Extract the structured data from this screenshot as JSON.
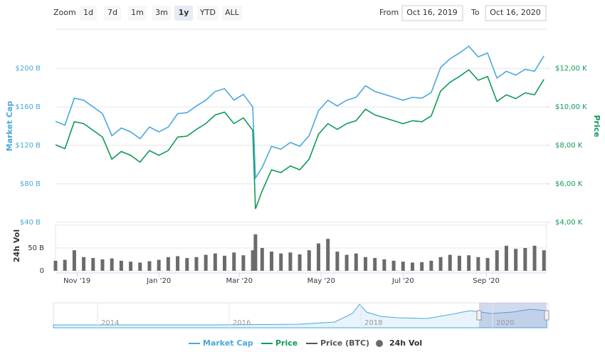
{
  "controls": {
    "zoom_label": "Zoom",
    "zoom_buttons": [
      "1d",
      "7d",
      "1m",
      "3m",
      "1y",
      "YTD",
      "ALL"
    ],
    "selected": "1y",
    "from_label": "From",
    "from_value": "Oct 16, 2019",
    "to_label": "To",
    "to_value": "Oct 16, 2020"
  },
  "navigator": {
    "labels": [
      "2014",
      "2016",
      "2018",
      "2020"
    ]
  },
  "chart_data": [
    {
      "type": "line",
      "ylabel": "Market Cap",
      "y2label": "Price",
      "xlim": [
        "2019-10-16",
        "2020-10-16"
      ],
      "x": [
        "2019-10-16",
        "2019-10-23",
        "2019-10-30",
        "2019-11-06",
        "2019-11-13",
        "2019-11-20",
        "2019-11-27",
        "2019-12-04",
        "2019-12-11",
        "2019-12-18",
        "2019-12-25",
        "2020-01-01",
        "2020-01-08",
        "2020-01-15",
        "2020-01-22",
        "2020-01-29",
        "2020-02-05",
        "2020-02-12",
        "2020-02-19",
        "2020-02-26",
        "2020-03-04",
        "2020-03-11",
        "2020-03-13",
        "2020-03-18",
        "2020-03-25",
        "2020-04-01",
        "2020-04-08",
        "2020-04-15",
        "2020-04-22",
        "2020-04-29",
        "2020-05-06",
        "2020-05-13",
        "2020-05-20",
        "2020-05-27",
        "2020-06-03",
        "2020-06-10",
        "2020-06-17",
        "2020-06-24",
        "2020-07-01",
        "2020-07-08",
        "2020-07-15",
        "2020-07-22",
        "2020-07-29",
        "2020-08-05",
        "2020-08-12",
        "2020-08-19",
        "2020-08-26",
        "2020-09-02",
        "2020-09-09",
        "2020-09-16",
        "2020-09-23",
        "2020-09-30",
        "2020-10-07",
        "2020-10-14"
      ],
      "ylim": [
        40,
        240
      ],
      "yticks": [
        {
          "value": 40,
          "label": "$40 B"
        },
        {
          "value": 80,
          "label": "$80 B"
        },
        {
          "value": 120,
          "label": "$120 B"
        },
        {
          "value": 160,
          "label": "$160 B"
        },
        {
          "value": 200,
          "label": "$200 B"
        }
      ],
      "y2lim": [
        4000,
        14000
      ],
      "y2ticks": [
        {
          "value": 4000,
          "label": "$4,00 K"
        },
        {
          "value": 6000,
          "label": "$6,00 K"
        },
        {
          "value": 8000,
          "label": "$8,00 K"
        },
        {
          "value": 10000,
          "label": "$10,00 K"
        },
        {
          "value": 12000,
          "label": "$12,00 K"
        }
      ],
      "grid": true,
      "series": [
        {
          "name": "Market Cap",
          "color": "#4aa8dc",
          "values": [
            145,
            141,
            169,
            167,
            160,
            153,
            130,
            138,
            134,
            127,
            139,
            134,
            139,
            153,
            154,
            161,
            167,
            176,
            179,
            167,
            173,
            160,
            86,
            97,
            119,
            116,
            123,
            119,
            130,
            156,
            167,
            161,
            167,
            170,
            182,
            176,
            173,
            170,
            167,
            170,
            169,
            175,
            201,
            210,
            216,
            223,
            212,
            216,
            190,
            197,
            193,
            199,
            197,
            213
          ]
        },
        {
          "name": "Price",
          "color": "#109a58",
          "axis": "y2",
          "values": [
            8030,
            7830,
            9230,
            9130,
            8780,
            8430,
            7280,
            7680,
            7480,
            7130,
            7730,
            7480,
            7730,
            8430,
            8480,
            8830,
            9130,
            9580,
            9730,
            9130,
            9430,
            8780,
            4700,
            5630,
            6730,
            6580,
            6930,
            6730,
            7280,
            8580,
            9130,
            8830,
            9130,
            9280,
            9880,
            9580,
            9430,
            9280,
            9130,
            9280,
            9230,
            9530,
            10830,
            11280,
            11580,
            11930,
            11380,
            11580,
            10280,
            10630,
            10430,
            10730,
            10630,
            11430
          ]
        },
        {
          "name": "Price (BTC)",
          "color": "#555555",
          "visible": false
        }
      ]
    },
    {
      "type": "bar",
      "ylabel": "24h Vol",
      "xlim": [
        "2019-10-16",
        "2020-10-16"
      ],
      "xticks": [
        {
          "value": "2019-11",
          "label": "Nov '19"
        },
        {
          "value": "2020-01",
          "label": "Jan '20"
        },
        {
          "value": "2020-03",
          "label": "Mar '20"
        },
        {
          "value": "2020-05",
          "label": "May '20"
        },
        {
          "value": "2020-07",
          "label": "Jul '20"
        },
        {
          "value": "2020-09",
          "label": "Sep '20"
        }
      ],
      "x": [
        "2019-10-16",
        "2019-10-23",
        "2019-10-30",
        "2019-11-06",
        "2019-11-13",
        "2019-11-20",
        "2019-11-27",
        "2019-12-04",
        "2019-12-11",
        "2019-12-18",
        "2019-12-25",
        "2020-01-01",
        "2020-01-08",
        "2020-01-15",
        "2020-01-22",
        "2020-01-29",
        "2020-02-05",
        "2020-02-12",
        "2020-02-19",
        "2020-02-26",
        "2020-03-04",
        "2020-03-11",
        "2020-03-13",
        "2020-03-18",
        "2020-03-25",
        "2020-04-01",
        "2020-04-08",
        "2020-04-15",
        "2020-04-22",
        "2020-04-29",
        "2020-05-06",
        "2020-05-13",
        "2020-05-20",
        "2020-05-27",
        "2020-06-03",
        "2020-06-10",
        "2020-06-17",
        "2020-06-24",
        "2020-07-01",
        "2020-07-08",
        "2020-07-15",
        "2020-07-22",
        "2020-07-29",
        "2020-08-05",
        "2020-08-12",
        "2020-08-19",
        "2020-08-26",
        "2020-09-02",
        "2020-09-09",
        "2020-09-16",
        "2020-09-23",
        "2020-09-30",
        "2020-10-07",
        "2020-10-14"
      ],
      "ylim": [
        0,
        100
      ],
      "yticks": [
        0,
        {
          "value": 50,
          "label": "50 B"
        }
      ],
      "series": [
        {
          "name": "24h Vol",
          "color": "#6b6b6b",
          "values": [
            22,
            24,
            45,
            30,
            28,
            25,
            27,
            22,
            20,
            18,
            21,
            24,
            30,
            32,
            28,
            30,
            35,
            38,
            33,
            40,
            34,
            45,
            80,
            50,
            42,
            38,
            40,
            36,
            45,
            60,
            70,
            42,
            35,
            38,
            30,
            28,
            25,
            22,
            20,
            18,
            19,
            22,
            30,
            35,
            33,
            34,
            30,
            28,
            45,
            55,
            48,
            50,
            55,
            45
          ]
        }
      ]
    }
  ]
}
